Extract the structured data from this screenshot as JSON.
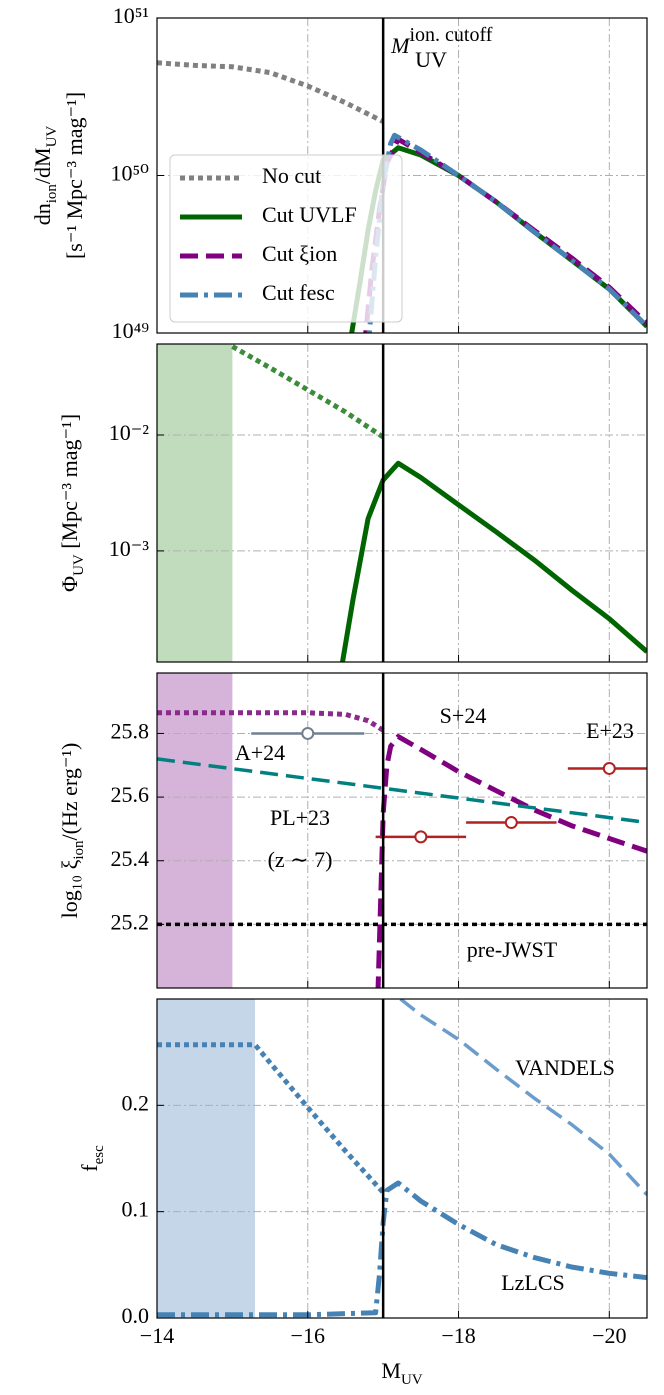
{
  "chart_data": [
    {
      "type": "line",
      "scale": "log",
      "xlim": [
        -14,
        -20.5
      ],
      "ylim": [
        1e+49,
        1e+51
      ],
      "yticks": [
        {
          "value": 1e+49,
          "label": "10⁴⁹"
        },
        {
          "value": 1e+50,
          "label": "10⁵⁰"
        },
        {
          "value": 1e+51,
          "label": "10⁵¹"
        }
      ],
      "xticks": [
        -14,
        -16,
        -18,
        -20
      ],
      "grid": true,
      "cutoff": -17,
      "cutoff_label": {
        "main": "M",
        "sub": "UV",
        "sup": "ion. cutoff"
      },
      "ylabel": [
        [
          "dn",
          "ion",
          "/dM",
          "UV"
        ],
        [
          "[s⁻¹ Mpc⁻³ mag⁻¹]"
        ]
      ],
      "legend": "lower left",
      "series": [
        {
          "name": "No cut",
          "color": "#808080",
          "style": "dotted",
          "x": [
            -14,
            -14.5,
            -15,
            -15.5,
            -16,
            -16.5,
            -17
          ],
          "values": [
            5.2e+50,
            5e+50,
            4.9e+50,
            4.5e+50,
            3.7e+50,
            2.9e+50,
            2.2e+50
          ]
        },
        {
          "name": "Cut UVLF",
          "color": "#006400",
          "style": "solid",
          "x": [
            -16.55,
            -16.7,
            -16.8,
            -16.9,
            -17,
            -17.2,
            -17.5,
            -18,
            -18.5,
            -19,
            -19.5,
            -20,
            -20.5
          ],
          "values": [
            8e+48,
            2.2e+49,
            4.5e+49,
            8e+49,
            1.25e+50,
            1.5e+50,
            1.35e+50,
            1e+50,
            6.8e+49,
            4.4e+49,
            2.9e+49,
            1.9e+49,
            1.1e+49
          ]
        },
        {
          "name": "Cut ξion",
          "color": "#800080",
          "style": "dashed",
          "x": [
            -16.75,
            -16.85,
            -16.95,
            -17.05,
            -17.2,
            -17.5,
            -18,
            -18.5,
            -19,
            -19.5,
            -20,
            -20.5
          ],
          "values": [
            8e+48,
            2.5e+49,
            6e+49,
            1.2e+50,
            1.7e+50,
            1.4e+50,
            1e+50,
            6.8e+49,
            4.5e+49,
            3e+49,
            1.95e+49,
            1.15e+49
          ]
        },
        {
          "name": "Cut fesc",
          "color": "#4682b4",
          "style": "dashdot",
          "x": [
            -16.8,
            -16.9,
            -17.0,
            -17.1,
            -17.15,
            -17.5,
            -18,
            -18.5,
            -19,
            -19.5,
            -20,
            -20.5
          ],
          "values": [
            8e+48,
            3e+49,
            9e+49,
            1.6e+50,
            1.8e+50,
            1.45e+50,
            1e+50,
            6.8e+49,
            4.4e+49,
            2.9e+49,
            1.9e+49,
            1.1e+49
          ]
        }
      ]
    },
    {
      "type": "line",
      "scale": "log",
      "xlim": [
        -14,
        -20.5
      ],
      "ylim": [
        0.00011,
        0.061
      ],
      "yticks": [
        {
          "value": 0.001,
          "label": "10⁻³"
        },
        {
          "value": 0.01,
          "label": "10⁻²"
        }
      ],
      "xticks": [
        -14,
        -16,
        -18,
        -20
      ],
      "grid": true,
      "cutoff": -17,
      "ylabel": [
        [
          "Φ",
          "UV",
          " [Mpc⁻³ mag⁻¹]"
        ]
      ],
      "shade": [
        -14,
        -15
      ],
      "shade_color": "#c0dcbc",
      "series": [
        {
          "color": "#3c8c3c",
          "style": "dotted",
          "x": [
            -15,
            -15.5,
            -16,
            -16.5,
            -17
          ],
          "values": [
            0.058,
            0.038,
            0.0245,
            0.0158,
            0.0096
          ]
        },
        {
          "color": "#006400",
          "style": "solid",
          "x": [
            -16.45,
            -16.6,
            -16.8,
            -17,
            -17.2,
            -17.5,
            -18,
            -18.5,
            -19,
            -19.5,
            -20,
            -20.5
          ],
          "values": [
            0.0001,
            0.00038,
            0.0019,
            0.0041,
            0.0057,
            0.0043,
            0.0025,
            0.00146,
            0.00084,
            0.00046,
            0.00026,
            0.000135
          ]
        }
      ]
    },
    {
      "type": "line",
      "scale": "linear",
      "xlim": [
        -14,
        -20.5
      ],
      "ylim": [
        25.0,
        25.99
      ],
      "yticks": [
        25.2,
        25.4,
        25.6,
        25.8
      ],
      "xticks": [
        -14,
        -16,
        -18,
        -20
      ],
      "grid": true,
      "cutoff": -17,
      "ylabel": [
        [
          "log₁₀ ξ",
          "ion",
          "/(Hz erg⁻¹)"
        ]
      ],
      "shade": [
        -14,
        -15
      ],
      "shade_color": "#d6b3d8",
      "series": [
        {
          "color": "#8b2a8b",
          "style": "dotted",
          "x": [
            -14,
            -14.5,
            -15,
            -15.5,
            -16,
            -16.5,
            -16.8,
            -17
          ],
          "values": [
            25.865,
            25.865,
            25.865,
            25.865,
            25.865,
            25.86,
            25.84,
            25.81
          ]
        },
        {
          "color": "#800080",
          "style": "dashed",
          "x": [
            -16.93,
            -16.97,
            -17.0,
            -17.05,
            -17.1,
            -17.2,
            -17.5,
            -18,
            -18.5,
            -19,
            -19.5,
            -20,
            -20.5
          ],
          "values": [
            24.98,
            25.3,
            25.55,
            25.7,
            25.76,
            25.79,
            25.75,
            25.68,
            25.62,
            25.56,
            25.51,
            25.47,
            25.43
          ]
        },
        {
          "color": "#008080",
          "style": "dashed",
          "x": [
            -14,
            -20.5
          ],
          "values": [
            25.72,
            25.52
          ]
        },
        {
          "color": "#000000",
          "style": "dotted",
          "x": [
            -14,
            -20.5
          ],
          "values": [
            25.2,
            25.2
          ]
        }
      ],
      "points": [
        {
          "name": "A+24",
          "color": "#708090",
          "x": [
            -16
          ],
          "values": [
            25.8
          ],
          "xerr": [
            0.75
          ]
        },
        {
          "name": "E+23",
          "color": "#b22222",
          "x": [
            -17.5,
            -18.7,
            -20
          ],
          "values": [
            25.475,
            25.52,
            25.69
          ],
          "xerr": [
            0.6,
            0.6,
            0.55
          ]
        }
      ],
      "annotations": [
        {
          "text": "S+24",
          "color": "#8b2a8b"
        },
        {
          "text": "PL+23",
          "color": "#008080"
        },
        {
          "text": "(z ∼ 7)",
          "color": "#008080"
        },
        {
          "text": "pre-JWST",
          "color": "#000000"
        }
      ]
    },
    {
      "type": "line",
      "scale": "linear",
      "xlim": [
        -14,
        -20.5
      ],
      "ylim": [
        0,
        0.3
      ],
      "yticks": [
        {
          "value": 0,
          "label": "0.0"
        },
        0.1,
        0.2
      ],
      "xticks": [
        {
          "value": -14,
          "label": "−14"
        },
        {
          "value": -16,
          "label": "−16"
        },
        {
          "value": -18,
          "label": "−18"
        },
        {
          "value": -20,
          "label": "−20"
        }
      ],
      "grid": true,
      "cutoff": -17,
      "ylabel": [
        [
          "f",
          "esc"
        ]
      ],
      "xlabel": [
        [
          "M",
          "UV"
        ]
      ],
      "shade": [
        -14,
        -15.3
      ],
      "shade_color": "#c5d6e8",
      "series": [
        {
          "color": "#4682b4",
          "style": "dotted",
          "x": [
            -14,
            -14.5,
            -15,
            -15.3,
            -15.5,
            -16,
            -16.5,
            -17
          ],
          "values": [
            0.257,
            0.257,
            0.257,
            0.257,
            0.24,
            0.198,
            0.157,
            0.118
          ]
        },
        {
          "color": "#4682b4",
          "style": "dashdot",
          "x": [
            -14,
            -16,
            -16.9,
            -16.95,
            -17,
            -17.05,
            -17.2,
            -17.5,
            -18,
            -18.5,
            -19,
            -19.5,
            -20,
            -20.5
          ],
          "values": [
            0.003,
            0.003,
            0.005,
            0.04,
            0.09,
            0.12,
            0.127,
            0.11,
            0.088,
            0.069,
            0.057,
            0.048,
            0.042,
            0.038
          ]
        },
        {
          "color": "#6a9ccc",
          "style": "dashed",
          "x": [
            -17.23,
            -17.5,
            -18,
            -18.5,
            -19,
            -19.5,
            -20,
            -20.5
          ],
          "values": [
            0.3,
            0.285,
            0.262,
            0.234,
            0.207,
            0.182,
            0.154,
            0.116
          ]
        }
      ],
      "annotations": [
        {
          "text": "VANDELS",
          "color": "#4682b4"
        },
        {
          "text": "LzLCS",
          "color": "#4682b4"
        }
      ]
    }
  ]
}
